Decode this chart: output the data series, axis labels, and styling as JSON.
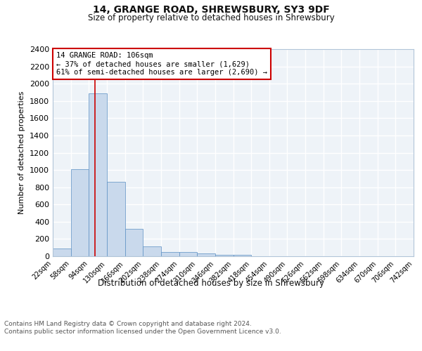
{
  "title1": "14, GRANGE ROAD, SHREWSBURY, SY3 9DF",
  "title2": "Size of property relative to detached houses in Shrewsbury",
  "xlabel": "Distribution of detached houses by size in Shrewsbury",
  "ylabel": "Number of detached properties",
  "bins": [
    22,
    58,
    94,
    130,
    166,
    202,
    238,
    274,
    310,
    346,
    382,
    418,
    454,
    490,
    526,
    562,
    598,
    634,
    670,
    706,
    742
  ],
  "counts": [
    90,
    1010,
    1890,
    860,
    320,
    110,
    50,
    45,
    30,
    20,
    20,
    0,
    0,
    0,
    0,
    0,
    0,
    0,
    0,
    0
  ],
  "bar_color": "#c9d9ec",
  "bar_edge_color": "#5a8fc3",
  "bg_color": "#eef3f8",
  "grid_color": "#ffffff",
  "annotation_text": "14 GRANGE ROAD: 106sqm\n← 37% of detached houses are smaller (1,629)\n61% of semi-detached houses are larger (2,690) →",
  "annotation_box_color": "#ffffff",
  "annotation_box_edge": "#cc0000",
  "property_line_x": 106,
  "property_line_color": "#cc0000",
  "ylim": [
    0,
    2400
  ],
  "yticks": [
    0,
    200,
    400,
    600,
    800,
    1000,
    1200,
    1400,
    1600,
    1800,
    2000,
    2200,
    2400
  ],
  "footer": "Contains HM Land Registry data © Crown copyright and database right 2024.\nContains public sector information licensed under the Open Government Licence v3.0.",
  "bin_width": 36
}
